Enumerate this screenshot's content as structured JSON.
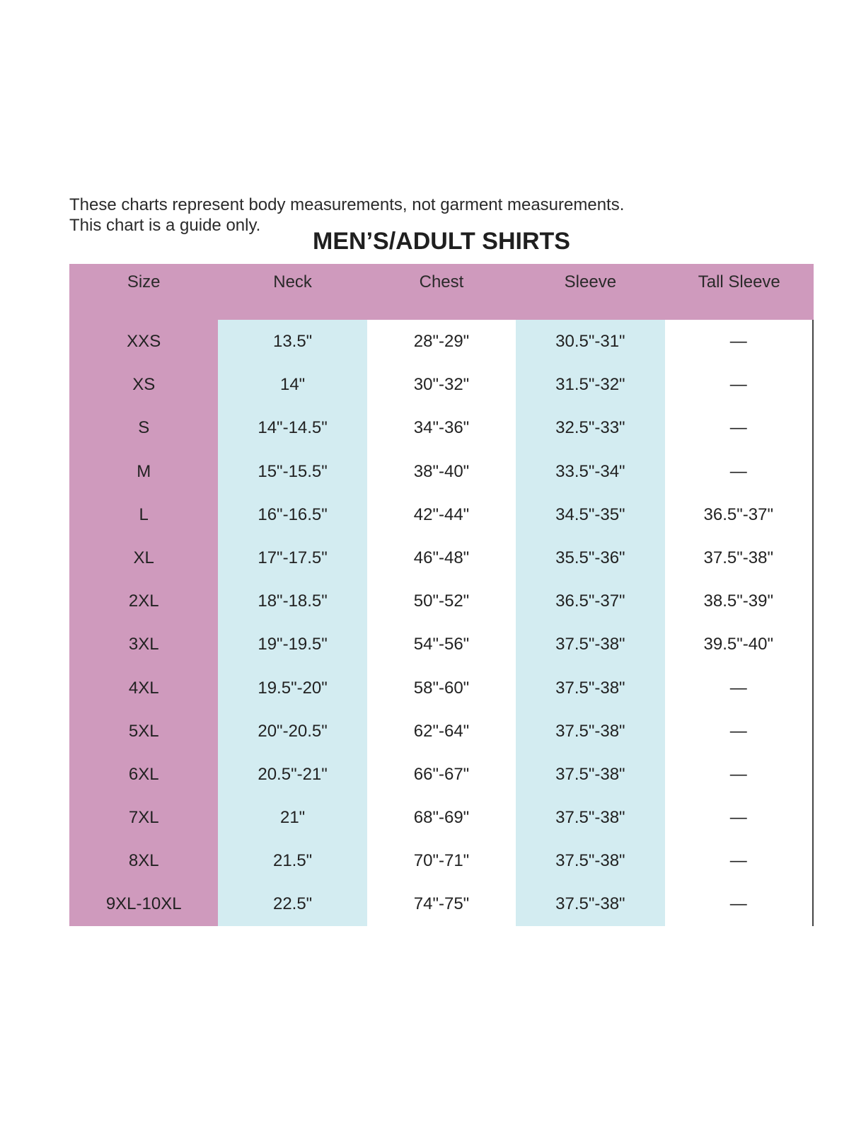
{
  "notes": [
    "These charts represent body measurements, not garment measurements.",
    "This chart is a guide only."
  ],
  "title": "MEN’S/ADULT SHIRTS",
  "colors": {
    "header": "#cf9abd",
    "size_column": "#cf9abd",
    "alt_column": "#d3ecf1"
  },
  "table": {
    "headers": [
      "Size",
      "Neck",
      "Chest",
      "Sleeve",
      "Tall Sleeve"
    ],
    "rows": [
      [
        "XXS",
        "13.5\"",
        "28\"-29\"",
        "30.5\"-31\"",
        "—"
      ],
      [
        "XS",
        "14\"",
        "30\"-32\"",
        "31.5\"-32\"",
        "—"
      ],
      [
        "S",
        "14\"-14.5\"",
        "34\"-36\"",
        "32.5\"-33\"",
        "—"
      ],
      [
        "M",
        "15\"-15.5\"",
        "38\"-40\"",
        "33.5\"-34\"",
        "—"
      ],
      [
        "L",
        "16\"-16.5\"",
        "42\"-44\"",
        "34.5\"-35\"",
        "36.5\"-37\""
      ],
      [
        "XL",
        "17\"-17.5\"",
        "46\"-48\"",
        "35.5\"-36\"",
        "37.5\"-38\""
      ],
      [
        "2XL",
        "18\"-18.5\"",
        "50\"-52\"",
        "36.5\"-37\"",
        "38.5\"-39\""
      ],
      [
        "3XL",
        "19\"-19.5\"",
        "54\"-56\"",
        "37.5\"-38\"",
        "39.5\"-40\""
      ],
      [
        "4XL",
        "19.5\"-20\"",
        "58\"-60\"",
        "37.5\"-38\"",
        "—"
      ],
      [
        "5XL",
        "20\"-20.5\"",
        "62\"-64\"",
        "37.5\"-38\"",
        "—"
      ],
      [
        "6XL",
        "20.5\"-21\"",
        "66\"-67\"",
        "37.5\"-38\"",
        "—"
      ],
      [
        "7XL",
        "21\"",
        "68\"-69\"",
        "37.5\"-38\"",
        "—"
      ],
      [
        "8XL",
        "21.5\"",
        "70\"-71\"",
        "37.5\"-38\"",
        "—"
      ],
      [
        "9XL-10XL",
        "22.5\"",
        "74\"-75\"",
        "37.5\"-38\"",
        "—"
      ]
    ]
  }
}
